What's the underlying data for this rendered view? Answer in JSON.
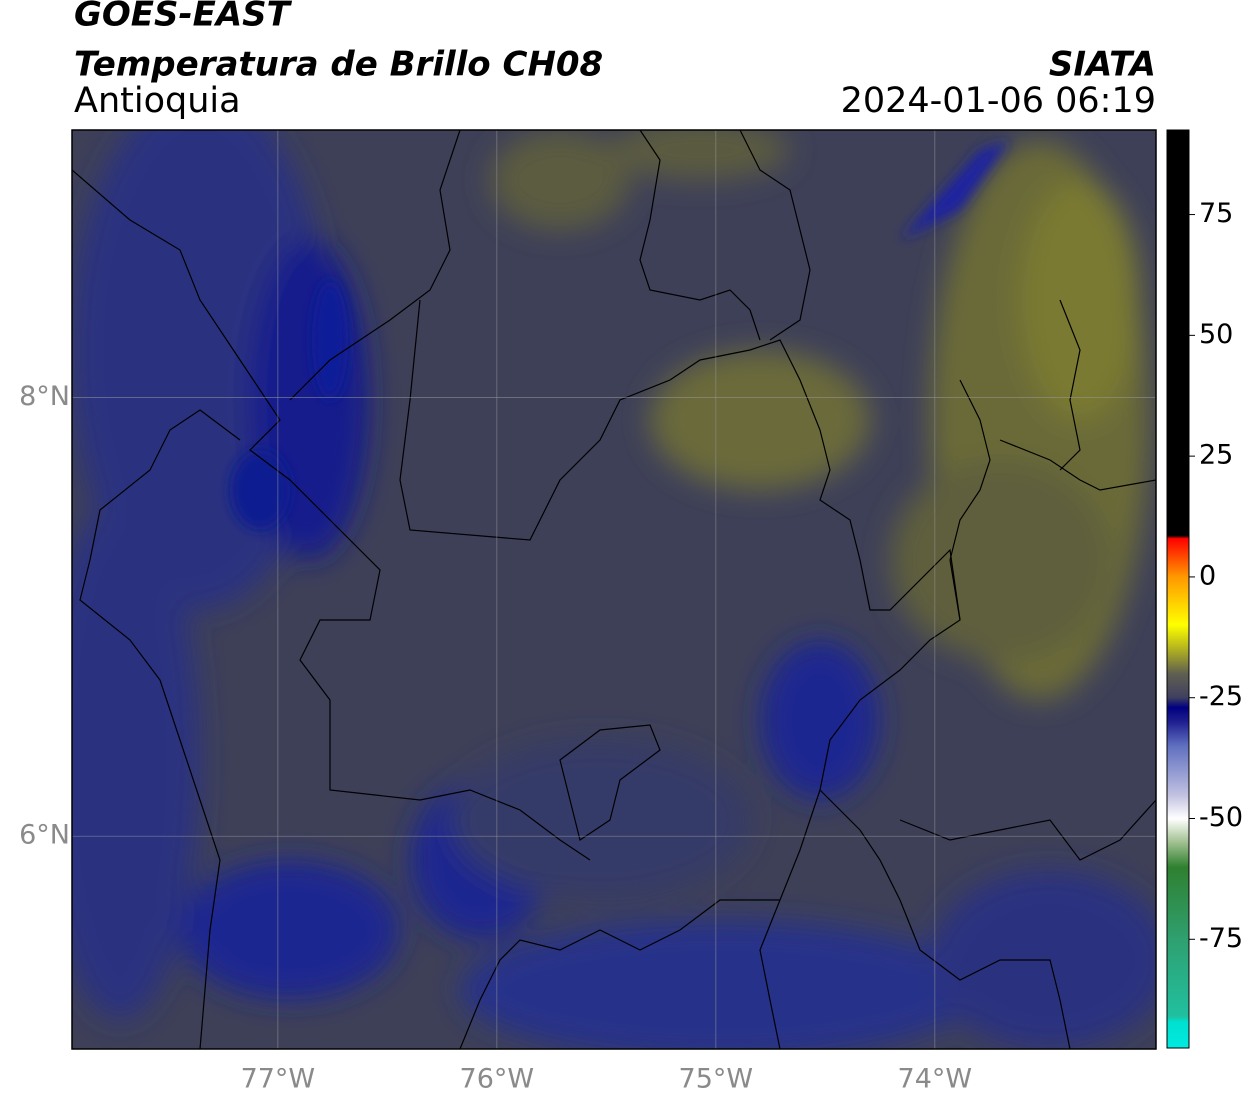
{
  "header": {
    "title": "GOES-EAST",
    "subtitle": "Temperatura de Brillo CH08",
    "region": "Antioquia",
    "source": "SIATA",
    "datetime": "2024-01-06 06:19"
  },
  "map": {
    "xlim": [
      -77.94,
      -72.99
    ],
    "ylim": [
      5.03,
      9.22
    ],
    "xticks": [
      {
        "value": -77,
        "label": "77°W"
      },
      {
        "value": -76,
        "label": "76°W"
      },
      {
        "value": -75,
        "label": "75°W"
      },
      {
        "value": -74,
        "label": "74°W"
      }
    ],
    "yticks": [
      {
        "value": 8,
        "label": "8°N"
      },
      {
        "value": 6,
        "label": "6°N"
      }
    ],
    "grid": true
  },
  "colorbar": {
    "lim": [
      -97.5,
      92.5
    ],
    "ticks": [
      75,
      50,
      25,
      0,
      -25,
      -50,
      -75
    ]
  }
}
